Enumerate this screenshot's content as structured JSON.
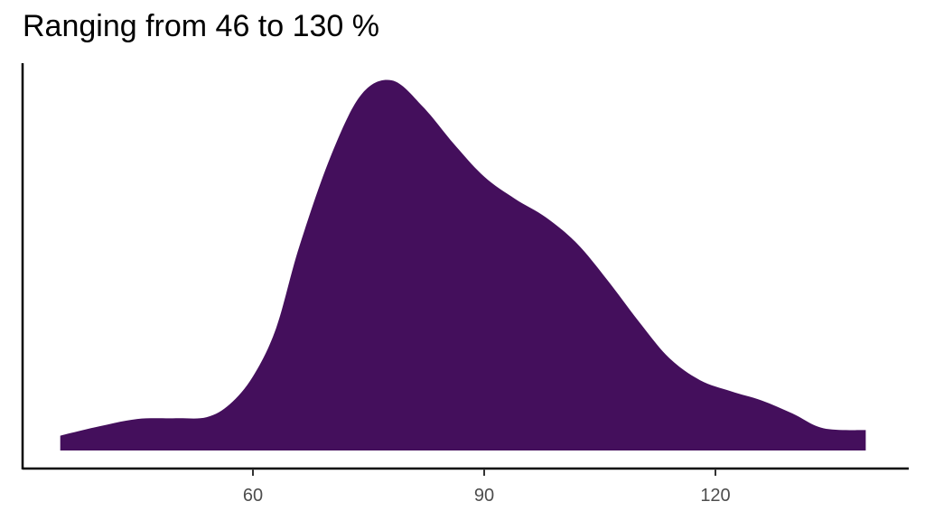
{
  "chart_data": {
    "type": "area",
    "title": "Ranging from 46 to 130 %",
    "xlabel": "",
    "ylabel": "",
    "xlim": [
      30,
      147
    ],
    "ylim": [
      0,
      1.05
    ],
    "x_ticks": [
      60,
      90,
      120
    ],
    "x_tick_labels": [
      "60",
      "90",
      "120"
    ],
    "grid": false,
    "legend": "none",
    "fill_color": "#440F5C",
    "series": [
      {
        "x": [
          35,
          40,
          45,
          50,
          54,
          57,
          60,
          63,
          66,
          70,
          74,
          78,
          82,
          86,
          90,
          94,
          98,
          102,
          106,
          110,
          114,
          118,
          122,
          126,
          130,
          134,
          139.5
        ],
        "values": [
          0.04,
          0.065,
          0.085,
          0.087,
          0.09,
          0.125,
          0.2,
          0.33,
          0.55,
          0.79,
          0.96,
          1.0,
          0.93,
          0.83,
          0.74,
          0.68,
          0.63,
          0.56,
          0.46,
          0.35,
          0.25,
          0.19,
          0.16,
          0.135,
          0.1,
          0.06,
          0.055
        ]
      }
    ]
  }
}
